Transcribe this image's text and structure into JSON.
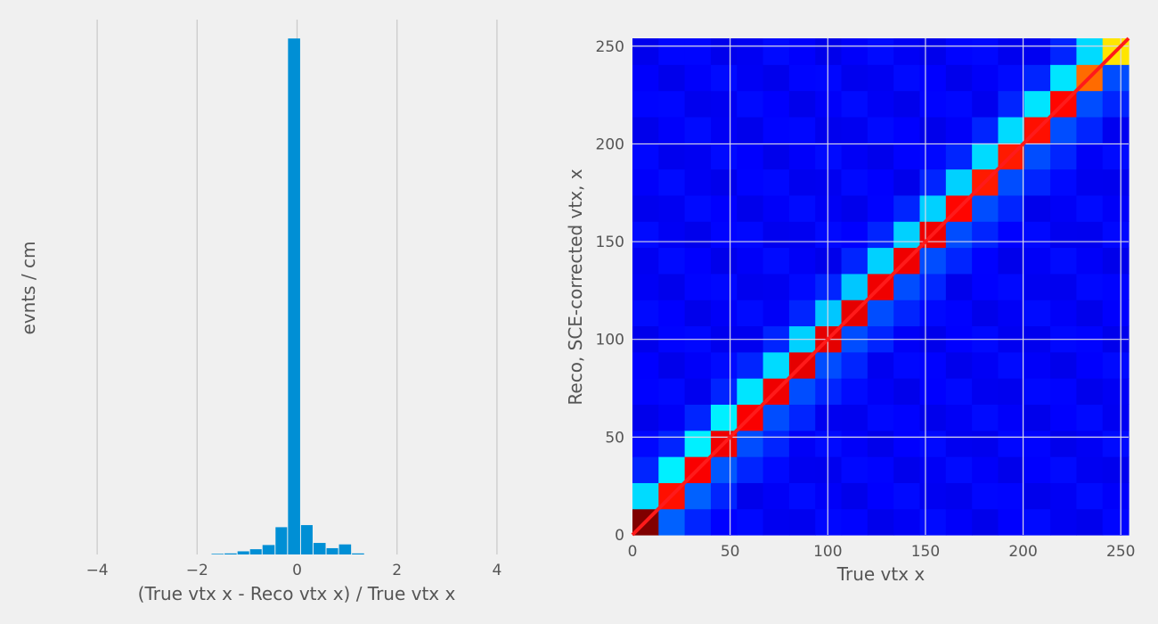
{
  "chart_data": [
    {
      "type": "bar",
      "xlabel": "(True vtx x - Reco vtx x) / True vtx x",
      "ylabel": "evnts / cm",
      "xlim": [
        -5.0,
        5.0
      ],
      "ylim": [
        0,
        255
      ],
      "grid": "x",
      "bar_color": "#008fd5",
      "xticks": [
        -4,
        -2,
        0,
        2,
        4
      ],
      "xtick_labels": [
        "−4",
        "−2",
        "0",
        "2",
        "4"
      ],
      "bins": [
        {
          "x0": -1.72,
          "x1": -1.46,
          "count": 0.3
        },
        {
          "x0": -1.46,
          "x1": -1.2,
          "count": 0.5
        },
        {
          "x0": -1.2,
          "x1": -0.95,
          "count": 1.5
        },
        {
          "x0": -0.95,
          "x1": -0.7,
          "count": 2.5
        },
        {
          "x0": -0.7,
          "x1": -0.44,
          "count": 4.5
        },
        {
          "x0": -0.44,
          "x1": -0.19,
          "count": 13
        },
        {
          "x0": -0.19,
          "x1": 0.07,
          "count": 246
        },
        {
          "x0": 0.07,
          "x1": 0.32,
          "count": 14
        },
        {
          "x0": 0.32,
          "x1": 0.58,
          "count": 5.5
        },
        {
          "x0": 0.58,
          "x1": 0.83,
          "count": 3
        },
        {
          "x0": 0.83,
          "x1": 1.09,
          "count": 4.8
        },
        {
          "x0": 1.09,
          "x1": 1.35,
          "count": 0.5
        }
      ]
    },
    {
      "type": "heatmap",
      "xlabel": "True vtx x",
      "ylabel": "Reco, SCE-corrected vtx, x",
      "xlim": [
        0,
        254
      ],
      "ylim": [
        0,
        254
      ],
      "grid": true,
      "colormap": "jet",
      "bins_per_axis": 19,
      "bin_width": 13.37,
      "xticks": [
        0,
        50,
        100,
        150,
        200,
        250
      ],
      "yticks": [
        0,
        50,
        100,
        150,
        200,
        250
      ],
      "xtick_labels": [
        "0",
        "50",
        "100",
        "150",
        "200",
        "250"
      ],
      "ytick_labels": [
        "0",
        "50",
        "100",
        "150",
        "200",
        "250"
      ],
      "diagonal": [
        1.0,
        0.86,
        0.88,
        0.89,
        0.88,
        0.89,
        0.9,
        0.9,
        0.9,
        0.89,
        0.89,
        0.89,
        0.87,
        0.85,
        0.85,
        0.86,
        0.87,
        0.77,
        0.65
      ],
      "upper_neighbor": [
        0.34,
        0.36,
        0.36,
        0.36,
        0.35,
        0.34,
        0.33,
        0.32,
        0.32,
        0.33,
        0.33,
        0.33,
        0.33,
        0.34,
        0.34,
        0.35,
        0.35,
        0.34,
        0.3
      ],
      "lower_neighbor": [
        0.2,
        0.22,
        0.22,
        0.21,
        0.2,
        0.2,
        0.2,
        0.2,
        0.2,
        0.2,
        0.2,
        0.2,
        0.2,
        0.2,
        0.2,
        0.2,
        0.2,
        0.2,
        0.2
      ],
      "background": 0.12,
      "fit_line": {
        "color": "#ff1a1a",
        "from": [
          0,
          0
        ],
        "to": [
          254,
          254
        ]
      }
    }
  ]
}
